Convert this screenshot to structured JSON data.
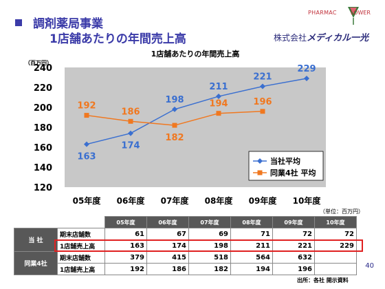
{
  "header": {
    "title_line1": "調剤薬局事業",
    "title_line2": "1店舗あたりの年間売上高",
    "logo_text_left": "PHARMAC",
    "logo_text_right": "LOWER",
    "company_prefix": "株式会社",
    "company_name": "メディカル一光"
  },
  "colors": {
    "series1": "#3a6fd0",
    "series2": "#f07820",
    "plot_bg": "#c8c8c8",
    "title": "#3a3aa8",
    "highlight": "#e02020"
  },
  "chart_data": {
    "type": "line",
    "title": "1店舗あたりの年間売上高",
    "ylabel": "（百万円）",
    "xlabel": "",
    "categories": [
      "05年度",
      "06年度",
      "07年度",
      "08年度",
      "09年度",
      "10年度"
    ],
    "ylim": [
      120,
      240
    ],
    "yticks": [
      120,
      140,
      160,
      180,
      200,
      220,
      240
    ],
    "grid": false,
    "legend_position": "bottom-right",
    "series": [
      {
        "name": "当社平均",
        "values": [
          163,
          174,
          198,
          211,
          221,
          229
        ],
        "marker": "diamond"
      },
      {
        "name": "同業4社 平均",
        "values": [
          192,
          186,
          182,
          194,
          196,
          null
        ],
        "marker": "square"
      }
    ]
  },
  "table": {
    "unit": "（単位：百万円）",
    "columns": [
      "05年度",
      "06年度",
      "07年度",
      "08年度",
      "09年度",
      "10年度"
    ],
    "groups": [
      {
        "name": "当 社",
        "rows": [
          {
            "label": "期末店舗数",
            "values": [
              "61",
              "67",
              "69",
              "71",
              "72",
              "72"
            ]
          },
          {
            "label": "1店舗売上高",
            "values": [
              "163",
              "174",
              "198",
              "211",
              "221",
              "229"
            ]
          }
        ]
      },
      {
        "name": "同業4社",
        "rows": [
          {
            "label": "期末店舗数",
            "values": [
              "379",
              "415",
              "518",
              "564",
              "632",
              ""
            ]
          },
          {
            "label": "1店舗売上高",
            "values": [
              "192",
              "186",
              "182",
              "194",
              "196",
              ""
            ]
          }
        ]
      }
    ]
  },
  "page_number": "40",
  "source": "出所：各社 開示資料"
}
